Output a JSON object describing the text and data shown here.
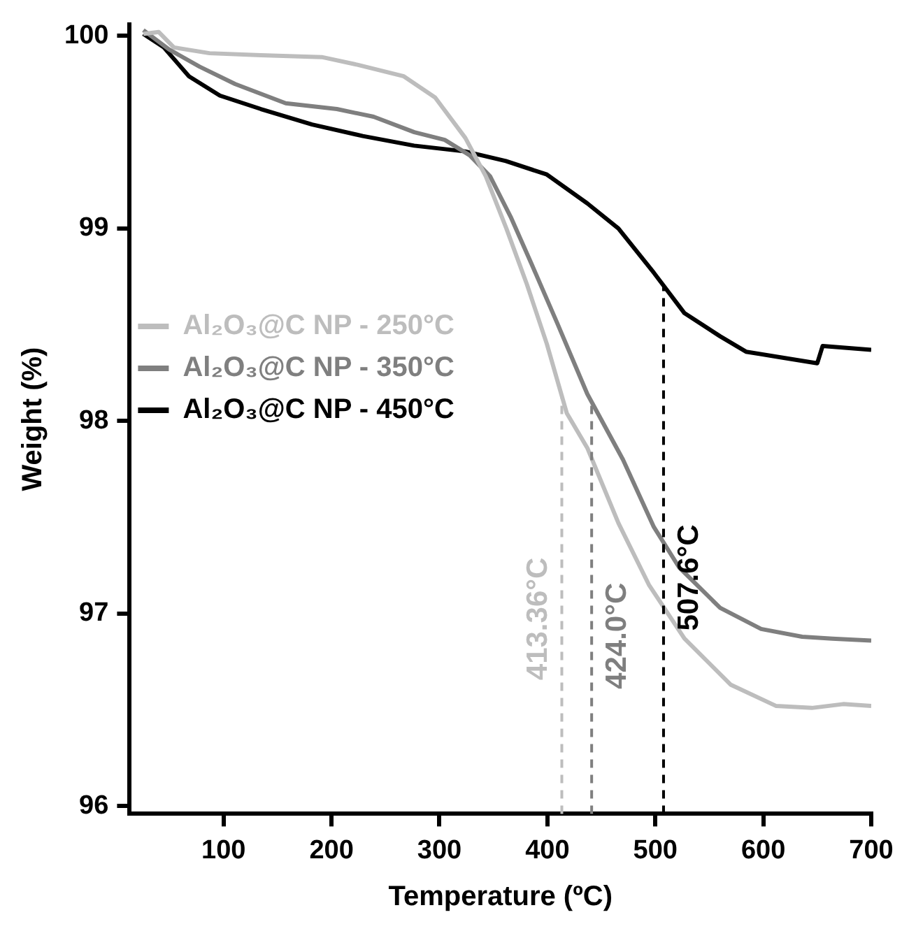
{
  "chart_data": {
    "type": "line",
    "xlabel": "Temperature (ºC)",
    "ylabel": "Weight (%)",
    "xlim": [
      13,
      700
    ],
    "ylim": [
      95.96,
      100.06
    ],
    "xticks": [
      100,
      200,
      300,
      400,
      500,
      600,
      700
    ],
    "yticks": [
      96,
      97,
      98,
      99,
      100
    ],
    "grid": false,
    "legend": "left",
    "marker": "none",
    "line_style": "solid",
    "series": [
      {
        "name": "Al₂O₃@C NP - 250°C",
        "color": "#bdbdbd",
        "x": [
          25.7,
          40,
          54,
          87,
          134.6,
          191,
          224,
          267,
          296,
          324,
          343,
          362,
          381,
          399.5,
          418,
          437,
          465.8,
          494,
          527,
          570,
          612,
          645,
          674,
          700
        ],
        "values": [
          100.01,
          100.02,
          99.94,
          99.91,
          99.9,
          99.89,
          99.85,
          99.79,
          99.68,
          99.47,
          99.27,
          99.0,
          98.71,
          98.4,
          98.04,
          97.86,
          97.47,
          97.15,
          96.87,
          96.63,
          96.52,
          96.51,
          96.53,
          96.52
        ]
      },
      {
        "name": "Al₂O₃@C NP - 350°C",
        "color": "#7f7f7f",
        "x": [
          25.7,
          49.4,
          77.8,
          110.8,
          157.6,
          205,
          239,
          276.7,
          304.9,
          328,
          347,
          366,
          385,
          409,
          437,
          470,
          498.6,
          522,
          560,
          598,
          636,
          664,
          700
        ],
        "values": [
          100.03,
          99.93,
          99.84,
          99.75,
          99.65,
          99.62,
          99.58,
          99.5,
          99.46,
          99.38,
          99.27,
          99.06,
          98.82,
          98.51,
          98.14,
          97.8,
          97.45,
          97.24,
          97.03,
          96.92,
          96.88,
          96.87,
          96.86
        ]
      },
      {
        "name": "Al₂O₃@C NP - 450°C",
        "color": "#000000",
        "x": [
          25.7,
          44.7,
          68,
          96.6,
          134.6,
          182,
          229,
          276.5,
          323.8,
          361.5,
          399.5,
          437,
          465.8,
          498.6,
          527,
          560,
          584,
          617,
          650,
          655,
          700
        ],
        "values": [
          100.01,
          99.94,
          99.79,
          99.69,
          99.62,
          99.54,
          99.48,
          99.43,
          99.4,
          99.35,
          99.28,
          99.13,
          99.0,
          98.77,
          98.56,
          98.44,
          98.36,
          98.33,
          98.3,
          98.39,
          98.37
        ]
      }
    ],
    "ref_lines": [
      {
        "axis": "x",
        "value": 413.36,
        "label": "413.36°C",
        "color": "#bdbdbd",
        "line_style": "dashed"
      },
      {
        "axis": "x",
        "value": 441,
        "label": "424.0°C",
        "color": "#7f7f7f",
        "line_style": "dashed"
      },
      {
        "axis": "x",
        "value": 507.6,
        "label": "507.6°C",
        "color": "#000000",
        "line_style": "dashed"
      }
    ]
  }
}
